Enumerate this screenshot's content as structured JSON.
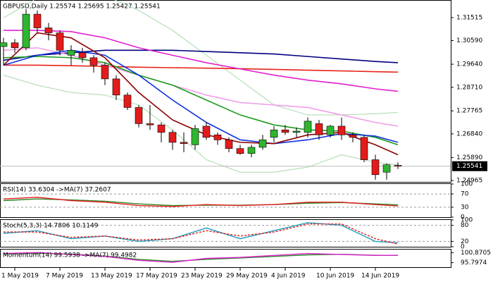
{
  "chart_data": {
    "type": "candlestick",
    "title": "GBPUSD,Daily  1.25574 1.25695 1.25427 1.25541",
    "categories": [
      null,
      "1 May 2019",
      null,
      null,
      null,
      "7 May 2019",
      null,
      null,
      null,
      "13 May 2019",
      null,
      null,
      null,
      "17 May 2019",
      null,
      null,
      null,
      "23 May 2019",
      null,
      null,
      null,
      "29 May 2019",
      null,
      null,
      null,
      "4 Jun 2019",
      null,
      null,
      null,
      "10 Jun 2019",
      null,
      null,
      null,
      "14 Jun 2019",
      null,
      null
    ],
    "open": [
      1.3035,
      1.305,
      1.303,
      1.3165,
      1.311,
      1.309,
      1.3,
      1.301,
      1.299,
      1.296,
      1.2905,
      1.284,
      1.279,
      1.2725,
      1.272,
      1.269,
      1.265,
      1.264,
      1.2715,
      1.268,
      1.266,
      1.2625,
      1.2605,
      1.263,
      1.267,
      1.27,
      1.269,
      1.269,
      1.2725,
      1.268,
      1.2715,
      1.268,
      1.267,
      1.258,
      1.253,
      1.25574
    ],
    "high": [
      1.307,
      1.3065,
      1.3185,
      1.318,
      1.313,
      1.31,
      1.304,
      1.303,
      1.3,
      1.297,
      1.292,
      1.285,
      1.28,
      1.28,
      1.273,
      1.27,
      1.269,
      1.272,
      1.273,
      1.269,
      1.267,
      1.264,
      1.264,
      1.268,
      1.2715,
      1.272,
      1.271,
      1.275,
      1.274,
      1.272,
      1.275,
      1.269,
      1.268,
      1.26,
      1.2565,
      1.25695
    ],
    "low": [
      1.296,
      1.301,
      1.302,
      1.309,
      1.306,
      1.3,
      1.296,
      1.297,
      1.293,
      1.288,
      1.282,
      1.278,
      1.271,
      1.27,
      1.265,
      1.262,
      1.261,
      1.262,
      1.266,
      1.264,
      1.261,
      1.26,
      1.259,
      1.262,
      1.265,
      1.268,
      1.267,
      1.267,
      1.266,
      1.267,
      1.266,
      1.265,
      1.257,
      1.25,
      1.25,
      1.25427
    ],
    "close": [
      1.305,
      1.303,
      1.3165,
      1.311,
      1.309,
      1.302,
      1.302,
      1.299,
      1.296,
      1.2905,
      1.284,
      1.279,
      1.2725,
      1.272,
      1.269,
      1.265,
      1.2645,
      1.2705,
      1.267,
      1.266,
      1.2625,
      1.2605,
      1.263,
      1.266,
      1.27,
      1.269,
      1.2695,
      1.2735,
      1.268,
      1.2715,
      1.268,
      1.267,
      1.258,
      1.252,
      1.256,
      1.25541
    ],
    "up_color": "#2fb52f",
    "down_color": "#e41b1b",
    "ylim": [
      1.2491,
      1.3222
    ],
    "yticks": [
      1.31515,
      {
        "value": 1.3059,
        "label": "1.30590"
      },
      {
        "value": 1.2964,
        "label": "1.29640"
      },
      {
        "value": 1.2871,
        "label": "1.28710"
      },
      1.27765,
      {
        "value": 1.2684,
        "label": "1.26840"
      },
      {
        "value": 1.2589,
        "label": "1.25890"
      },
      1.24965
    ],
    "current": 1.25541,
    "x": [
      0,
      3,
      6,
      9,
      12,
      15,
      18,
      21,
      24,
      27,
      30,
      33,
      35
    ],
    "overlays": [
      {
        "color": "#a8d8a8",
        "values": [
          1.315,
          1.323,
          1.326,
          1.324,
          1.318,
          1.31,
          1.3,
          1.29,
          1.28,
          1.276,
          1.276,
          1.2765,
          1.277
        ]
      },
      {
        "color": "#a8d8a8",
        "values": [
          1.292,
          1.288,
          1.285,
          1.284,
          1.28,
          1.27,
          1.258,
          1.253,
          1.253,
          1.255,
          1.26,
          1.257,
          1.256
        ]
      },
      {
        "color": "#000080",
        "values": [
          1.298,
          1.3,
          1.301,
          1.302,
          1.302,
          1.302,
          1.3015,
          1.301,
          1.3005,
          1.2995,
          1.2985,
          1.2975,
          1.297
        ]
      },
      {
        "color": "#e8231b",
        "values": [
          1.296,
          1.296,
          1.2958,
          1.2955,
          1.2952,
          1.295,
          1.2948,
          1.2946,
          1.2943,
          1.294,
          1.2937,
          1.2934,
          1.2932
        ]
      },
      {
        "color": "#e020d0",
        "values": [
          1.31,
          1.31,
          1.3095,
          1.307,
          1.303,
          1.3,
          1.297,
          1.2945,
          1.292,
          1.29,
          1.2885,
          1.2865,
          1.2855
        ]
      },
      {
        "color": "#f0a0e8",
        "values": [
          1.302,
          1.303,
          1.3,
          1.296,
          1.292,
          1.288,
          1.284,
          1.281,
          1.28,
          1.279,
          1.276,
          1.273,
          1.2715
        ]
      },
      {
        "color": "#1a9a1a",
        "values": [
          1.299,
          1.2995,
          1.299,
          1.297,
          1.292,
          1.288,
          1.282,
          1.276,
          1.272,
          1.27,
          1.2695,
          1.267,
          1.264
        ]
      },
      {
        "color": "#1030e0",
        "values": [
          1.296,
          1.3,
          1.302,
          1.3,
          1.292,
          1.282,
          1.273,
          1.266,
          1.2645,
          1.266,
          1.2685,
          1.2675,
          1.265
        ]
      },
      {
        "color": "#8b0000",
        "values": [
          1.296,
          1.309,
          1.307,
          1.299,
          1.285,
          1.274,
          1.268,
          1.265,
          1.2645,
          1.268,
          1.269,
          1.264,
          1.26
        ]
      }
    ],
    "panels": [
      {
        "title": "RSI(14) 33.6304 ->MA(7) 37.2607",
        "ylim": [
          0,
          100
        ],
        "yticks": [
          100,
          70,
          30,
          0
        ],
        "levels": [
          70,
          30
        ],
        "series": [
          {
            "color": "#2a8a2a",
            "values": [
              50,
              55,
              52,
              48,
              40,
              35,
              36,
              36,
              38,
              42,
              44,
              40,
              37
            ]
          },
          {
            "color": "#e41b1b",
            "values": [
              55,
              60,
              50,
              45,
              35,
              32,
              38,
              35,
              38,
              45,
              45,
              38,
              34
            ]
          }
        ]
      },
      {
        "title": "Stoch(5,3,3) 14.7806 10.1149",
        "ylim": [
          0,
          100
        ],
        "yticks": [
          100,
          80,
          20,
          0
        ],
        "levels": [
          80,
          20
        ],
        "series": [
          {
            "color": "#20a0c0",
            "values": [
              50,
              60,
              30,
              40,
              20,
              30,
              70,
              30,
              60,
              90,
              80,
              20,
              15
            ]
          },
          {
            "color": "#e41b1b",
            "dashed": true,
            "values": [
              55,
              55,
              35,
              40,
              25,
              30,
              60,
              40,
              55,
              85,
              85,
              30,
              10
            ]
          }
        ]
      },
      {
        "title": "Momentum(14) 99.5938 ->MA(7) 99.4982",
        "ylim": [
          93.5,
          102.5
        ],
        "yticks": [
          100.8705,
          95.7974
        ],
        "levels": [],
        "series": [
          {
            "color": "#2a8a2a",
            "values": [
              100.3,
              100.6,
              100.2,
              99.2,
              97.5,
              96.5,
              97.5,
              98.2,
              99,
              99.8,
              100.1,
              99.6,
              99.5
            ]
          },
          {
            "color": "#e020d0",
            "values": [
              100.5,
              101,
              100,
              99,
              97,
              96,
              98,
              98.5,
              99.5,
              100.5,
              100,
              99.5,
              99.6
            ]
          }
        ]
      }
    ]
  }
}
